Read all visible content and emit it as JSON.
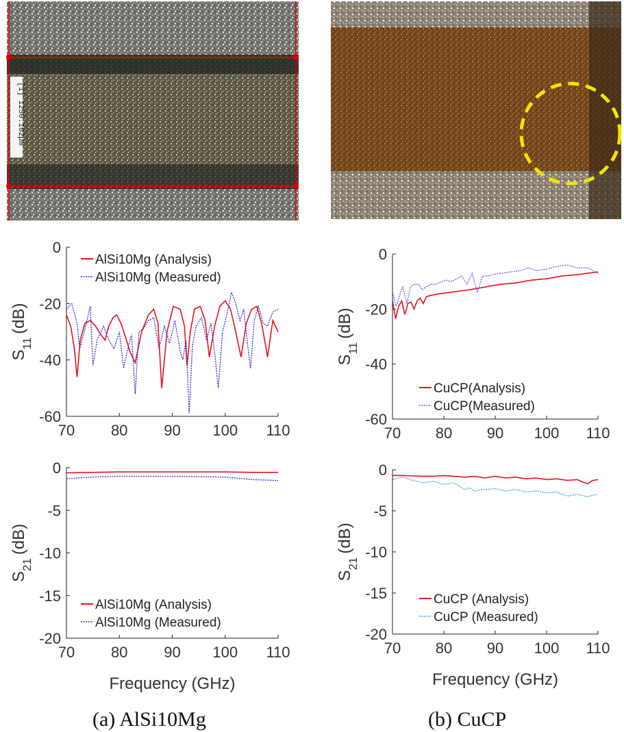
{
  "colors": {
    "analysis": "#e8101e",
    "measured_a": "#2b2bd0",
    "measured_b_s11": "#5a5af0",
    "measured_b_s21": "#3b9be0",
    "highlight": "#f2e600",
    "marker": "#e00000"
  },
  "micrograph_a": {
    "measure_label": "[1] 1250.102µm"
  },
  "captions": {
    "a": "(a)  AlSi10Mg",
    "b": "(b)  CuCP"
  },
  "chart_data": [
    {
      "id": "a_s11",
      "type": "line",
      "xlabel": "",
      "ylabel": "S11 (dB)",
      "xlim": [
        70,
        110
      ],
      "ylim": [
        -60,
        0
      ],
      "xticks": [
        "70",
        "80",
        "90",
        "100",
        "110"
      ],
      "yticks": [
        "0",
        "-20",
        "-40",
        "-60"
      ],
      "legend_position": "top-left",
      "series": [
        {
          "name": "AlSi10Mg (Analysis)",
          "x": [
            70,
            70.8,
            71.5,
            72,
            72.6,
            73.5,
            74.5,
            75.5,
            76.5,
            77.3,
            78,
            78.8,
            79.5,
            80.3,
            81,
            82,
            83,
            84.2,
            85.5,
            86.5,
            87.3,
            88,
            89,
            90.2,
            91.5,
            92.3,
            92.8,
            93.4,
            94.2,
            95.3,
            96.2,
            97,
            98,
            99,
            100,
            101,
            102,
            103,
            104,
            105,
            106,
            107,
            108,
            109,
            110
          ],
          "y": [
            -24,
            -28,
            -36,
            -46,
            -33,
            -27,
            -26,
            -28,
            -31,
            -33,
            -28,
            -25,
            -24,
            -27,
            -31,
            -37,
            -41,
            -30,
            -24,
            -22,
            -27,
            -50,
            -30,
            -21,
            -22,
            -28,
            -42,
            -30,
            -22,
            -21,
            -26,
            -39,
            -28,
            -21,
            -19,
            -22,
            -30,
            -39,
            -27,
            -22,
            -21,
            -28,
            -39,
            -26,
            -30
          ]
        },
        {
          "name": "AlSi10Mg (Measured)",
          "x": [
            70,
            71,
            72,
            72.5,
            73.5,
            74.5,
            75,
            75.8,
            77,
            78,
            79,
            80,
            80.8,
            81.5,
            82.3,
            83,
            83.7,
            84.5,
            85.5,
            86.5,
            87.5,
            88.5,
            89.5,
            90.5,
            91.5,
            92,
            92.6,
            93.2,
            93.8,
            94.5,
            95.5,
            96.5,
            97.3,
            98,
            98.7,
            99.5,
            100.3,
            101.2,
            102,
            102.8,
            103.5,
            104.2,
            104.8,
            105.5,
            106.3,
            107.2,
            108,
            109,
            110
          ],
          "y": [
            -22,
            -20,
            -27,
            -36,
            -29,
            -21,
            -42,
            -33,
            -28,
            -33,
            -36,
            -30,
            -43,
            -37,
            -31,
            -52,
            -30,
            -29,
            -26,
            -25,
            -36,
            -28,
            -34,
            -26,
            -37,
            -40,
            -33,
            -59,
            -35,
            -28,
            -25,
            -33,
            -27,
            -37,
            -50,
            -30,
            -24,
            -16,
            -20,
            -26,
            -22,
            -34,
            -43,
            -26,
            -21,
            -27,
            -28,
            -23,
            -22
          ]
        }
      ]
    },
    {
      "id": "a_s21",
      "type": "line",
      "xlabel": "Frequency (GHz)",
      "ylabel": "S21 (dB)",
      "xlim": [
        70,
        110
      ],
      "ylim": [
        -20,
        0
      ],
      "xticks": [
        "70",
        "80",
        "90",
        "100",
        "110"
      ],
      "yticks": [
        "0",
        "-5",
        "-10",
        "-15",
        "-20"
      ],
      "legend_position": "bottom-left",
      "series": [
        {
          "name": "AlSi10Mg (Analysis)",
          "x": [
            70,
            75,
            80,
            85,
            90,
            95,
            100,
            105,
            110
          ],
          "y": [
            -0.6,
            -0.55,
            -0.5,
            -0.5,
            -0.5,
            -0.5,
            -0.5,
            -0.55,
            -0.55
          ]
        },
        {
          "name": "AlSi10Mg (Measured)",
          "x": [
            70,
            75,
            80,
            85,
            90,
            95,
            100,
            105,
            110
          ],
          "y": [
            -1.3,
            -1.1,
            -1.0,
            -1.0,
            -1.0,
            -1.05,
            -1.1,
            -1.4,
            -1.5
          ]
        }
      ]
    },
    {
      "id": "b_s11",
      "type": "line",
      "xlabel": "",
      "ylabel": "S11 (dB)",
      "xlim": [
        70,
        110
      ],
      "ylim": [
        -60,
        0
      ],
      "xticks": [
        "70",
        "80",
        "90",
        "100",
        "110"
      ],
      "yticks": [
        "0",
        "-20",
        "-40",
        "-60"
      ],
      "legend_position": "bottom-center",
      "series": [
        {
          "name": "CuCP(Analysis)",
          "x": [
            70,
            70.6,
            71.2,
            71.8,
            72.4,
            73,
            73.6,
            74.2,
            74.8,
            75.4,
            76,
            76.6,
            77.5,
            79,
            81,
            83,
            85,
            88,
            91,
            94,
            97,
            100,
            103,
            106,
            108,
            110
          ],
          "y": [
            -17,
            -23.5,
            -19,
            -17,
            -22,
            -18,
            -17.5,
            -20,
            -17,
            -16,
            -18,
            -15.5,
            -15,
            -14.5,
            -14,
            -13.5,
            -13,
            -12,
            -11,
            -10.5,
            -9.5,
            -9,
            -8,
            -7.5,
            -7,
            -6.5
          ]
        },
        {
          "name": "CuCP(Measured)",
          "x": [
            70,
            70.7,
            71.4,
            72,
            72.8,
            73.5,
            74.3,
            75,
            75.8,
            76.5,
            77.5,
            78.5,
            79.5,
            80.5,
            81.5,
            82.5,
            83.5,
            84.5,
            85.5,
            86.5,
            87.5,
            88.5,
            89.5,
            91,
            93,
            95,
            96.5,
            98,
            100,
            102,
            104,
            106,
            108,
            110
          ],
          "y": [
            -14,
            -19,
            -15,
            -12,
            -18,
            -12,
            -11,
            -11,
            -13,
            -12,
            -11,
            -11,
            -10,
            -9.5,
            -10,
            -9,
            -8,
            -11,
            -7,
            -14,
            -8,
            -8,
            -7.5,
            -7,
            -6.5,
            -6,
            -5,
            -6,
            -5.5,
            -4.5,
            -4,
            -5,
            -5,
            -7
          ]
        }
      ]
    },
    {
      "id": "b_s21",
      "type": "line",
      "xlabel": "Frequency (GHz)",
      "ylabel": "S21 (dB)",
      "xlim": [
        70,
        110
      ],
      "ylim": [
        -20,
        0
      ],
      "xticks": [
        "70",
        "80",
        "90",
        "100",
        "110"
      ],
      "yticks": [
        "0",
        "-5",
        "-10",
        "-15",
        "-20"
      ],
      "legend_position": "bottom-center",
      "series": [
        {
          "name": "CuCP (Analysis)",
          "x": [
            70,
            72,
            74,
            76,
            78,
            80,
            82,
            84,
            86,
            88,
            90,
            92,
            94,
            96,
            98,
            100,
            102,
            104,
            106,
            107,
            108,
            109,
            110
          ],
          "y": [
            -0.7,
            -0.7,
            -0.75,
            -0.8,
            -0.8,
            -0.7,
            -0.8,
            -0.9,
            -0.8,
            -1.0,
            -0.8,
            -1.0,
            -0.9,
            -1.1,
            -1.0,
            -1.2,
            -1.1,
            -1.3,
            -1.2,
            -1.5,
            -1.7,
            -1.3,
            -1.2
          ]
        },
        {
          "name": "CuCP (Measured)",
          "x": [
            70,
            72,
            74,
            76,
            78,
            80,
            82,
            84,
            85,
            86,
            88,
            90,
            92,
            94,
            96,
            98,
            100,
            102,
            104,
            106,
            108,
            109,
            110
          ],
          "y": [
            -1.2,
            -0.9,
            -1.3,
            -1.6,
            -1.4,
            -1.8,
            -1.6,
            -2.4,
            -2.2,
            -2.6,
            -2.4,
            -2.3,
            -2.6,
            -2.4,
            -2.7,
            -2.6,
            -2.8,
            -2.7,
            -3.2,
            -3.0,
            -3.3,
            -3.1,
            -3.0
          ]
        }
      ]
    }
  ]
}
